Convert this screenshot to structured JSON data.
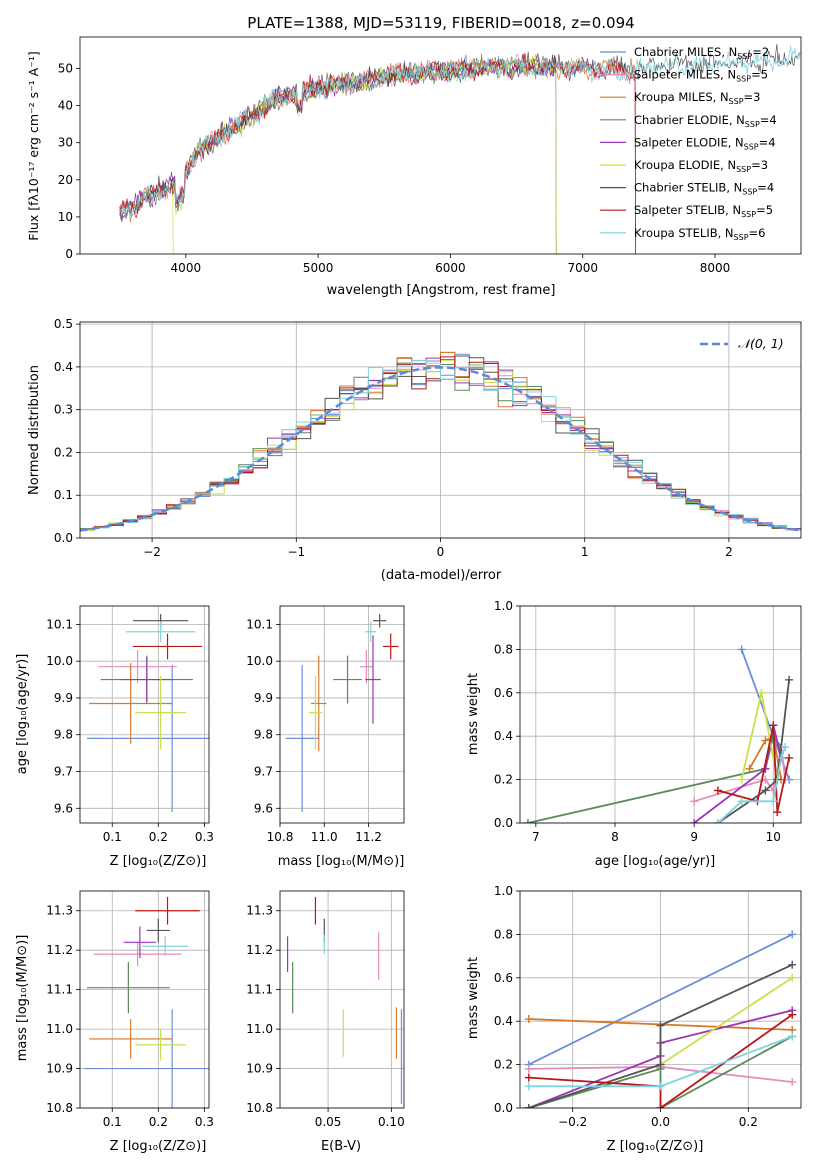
{
  "figure_title": "PLATE=1388, MJD=53119, FIBERID=0018, z=0.094",
  "colors": {
    "Chabrier MILES": "#6a8fd8",
    "Salpeter MILES": "#e58cbb",
    "Kroupa MILES": "#d8782a",
    "Chabrier ELODIE": "#5a8a5a",
    "Salpeter ELODIE": "#9b34b8",
    "Kroupa ELODIE": "#c9e04a",
    "Chabrier STELIB": "#555555",
    "Salpeter STELIB": "#b81818",
    "Kroupa STELIB": "#7fd3de",
    "normal": "#5b8bd6"
  },
  "chart_data": [
    {
      "type": "line",
      "id": "spectrum",
      "title": "PLATE=1388, MJD=53119, FIBERID=0018, z=0.094",
      "xlabel": "wavelength [Angstrom, rest frame]",
      "ylabel": "Flux [fλ10⁻¹⁷ erg cm⁻² s⁻¹ A⁻¹]",
      "xlim": [
        3200,
        8650
      ],
      "ylim": [
        0,
        58.5
      ],
      "xticks": [
        4000,
        5000,
        6000,
        7000,
        8000
      ],
      "yticks": [
        0,
        10,
        20,
        30,
        40,
        50
      ],
      "legend_position": "top-right",
      "legend": [
        {
          "label": "Chabrier MILES, N",
          "sub": "SSP",
          "tail": "=2"
        },
        {
          "label": "Salpeter MILES, N",
          "sub": "SSP",
          "tail": "=5"
        },
        {
          "label": "Kroupa MILES, N",
          "sub": "SSP",
          "tail": "=3"
        },
        {
          "label": "Chabrier ELODIE, N",
          "sub": "SSP",
          "tail": "=4"
        },
        {
          "label": "Salpeter ELODIE, N",
          "sub": "SSP",
          "tail": "=4"
        },
        {
          "label": "Kroupa ELODIE, N",
          "sub": "SSP",
          "tail": "=3"
        },
        {
          "label": "Chabrier STELIB, N",
          "sub": "SSP",
          "tail": "=4"
        },
        {
          "label": "Salpeter STELIB, N",
          "sub": "SSP",
          "tail": "=5"
        },
        {
          "label": "Kroupa STELIB, N",
          "sub": "SSP",
          "tail": "=6"
        }
      ],
      "series": [
        {
          "name": "Chabrier MILES",
          "x": [
            3500,
            7400
          ]
        },
        {
          "name": "Salpeter MILES",
          "x": [
            3500,
            7400
          ]
        },
        {
          "name": "Kroupa MILES",
          "x": [
            3500,
            7400
          ]
        },
        {
          "name": "Chabrier ELODIE",
          "x": [
            3500,
            6800
          ]
        },
        {
          "name": "Salpeter ELODIE",
          "x": [
            3500,
            6800
          ]
        },
        {
          "name": "Kroupa ELODIE",
          "x": [
            3900,
            6800
          ]
        },
        {
          "name": "Chabrier STELIB",
          "x": [
            3500,
            8650
          ]
        },
        {
          "name": "Salpeter STELIB",
          "x": [
            3500,
            7400
          ]
        },
        {
          "name": "Kroupa STELIB",
          "x": [
            3500,
            8650
          ]
        }
      ],
      "continuum": [
        [
          3500,
          11
        ],
        [
          3600,
          13
        ],
        [
          3700,
          15
        ],
        [
          3800,
          17
        ],
        [
          3900,
          19
        ],
        [
          4000,
          22
        ],
        [
          4100,
          28
        ],
        [
          4200,
          30
        ],
        [
          4300,
          33
        ],
        [
          4400,
          35
        ],
        [
          4500,
          37
        ],
        [
          4600,
          40
        ],
        [
          4700,
          42
        ],
        [
          4800,
          43
        ],
        [
          4900,
          44
        ],
        [
          5000,
          45
        ],
        [
          5100,
          45.5
        ],
        [
          5200,
          46
        ],
        [
          5300,
          46.5
        ],
        [
          5400,
          47
        ],
        [
          5500,
          48
        ],
        [
          5600,
          48.5
        ],
        [
          5800,
          49
        ],
        [
          6000,
          49.5
        ],
        [
          6200,
          50
        ],
        [
          6400,
          50.5
        ],
        [
          6600,
          50.5
        ],
        [
          6800,
          50.5
        ],
        [
          7000,
          50
        ],
        [
          7200,
          50
        ],
        [
          7400,
          49.5
        ],
        [
          7600,
          51
        ],
        [
          7800,
          51
        ],
        [
          8000,
          51.5
        ],
        [
          8200,
          51.5
        ],
        [
          8400,
          52
        ],
        [
          8600,
          53
        ]
      ]
    },
    {
      "type": "line",
      "id": "residuals",
      "xlabel": "(data-model)/error",
      "ylabel": "Normed distribution",
      "xlim": [
        -2.5,
        2.5
      ],
      "ylim": [
        0,
        0.505
      ],
      "xticks": [
        -2,
        -1,
        0,
        1,
        2
      ],
      "yticks": [
        0.0,
        0.1,
        0.2,
        0.3,
        0.4,
        0.5
      ],
      "legend": [
        "𝒩(0, 1)"
      ],
      "legend_position": "top-right",
      "bin_width": 0.1
    },
    {
      "type": "scatter",
      "id": "age-vs-Z",
      "xlabel": "Z [log₁₀(Z/Z⊙)]",
      "ylabel": "age  [log₁₀(age/yr)]",
      "xlim": [
        0.03,
        0.31
      ],
      "ylim": [
        9.56,
        10.15
      ],
      "xticks": [
        0.1,
        0.2,
        0.3
      ],
      "yticks": [
        9.6,
        9.7,
        9.8,
        9.9,
        10.0,
        10.1
      ],
      "points": [
        {
          "name": "Chabrier MILES",
          "x": 0.23,
          "xerr": 0.185,
          "y": 9.79,
          "yerr": 0.2
        },
        {
          "name": "Salpeter MILES",
          "x": 0.155,
          "xerr": 0.085,
          "y": 9.985,
          "yerr": 0.045
        },
        {
          "name": "Kroupa MILES",
          "x": 0.14,
          "xerr": 0.09,
          "y": 9.885,
          "yerr": 0.11
        },
        {
          "name": "Chabrier ELODIE",
          "x": 0.175,
          "xerr": 0.1,
          "y": 9.95,
          "yerr": 0.065
        },
        {
          "name": "Salpeter ELODIE",
          "x": 0.175,
          "xerr": 0.055,
          "y": 9.95,
          "yerr": 0.06
        },
        {
          "name": "Kroupa ELODIE",
          "x": 0.205,
          "xerr": 0.055,
          "y": 9.86,
          "yerr": 0.1
        },
        {
          "name": "Chabrier STELIB",
          "x": 0.205,
          "xerr": 0.06,
          "y": 10.11,
          "yerr": 0.018
        },
        {
          "name": "Salpeter STELIB",
          "x": 0.22,
          "xerr": 0.075,
          "y": 10.04,
          "yerr": 0.035
        },
        {
          "name": "Kroupa STELIB",
          "x": 0.205,
          "xerr": 0.075,
          "y": 10.08,
          "yerr": 0.028
        }
      ]
    },
    {
      "type": "scatter",
      "id": "age-vs-mass",
      "xlabel": "mass [log₁₀(M/M⊙)]",
      "xlim": [
        10.8,
        11.36
      ],
      "ylim": [
        9.56,
        10.15
      ],
      "xticks": [
        10.8,
        11.0,
        11.2
      ],
      "yticks": [
        9.6,
        9.7,
        9.8,
        9.9,
        10.0,
        10.1
      ],
      "points": [
        {
          "name": "Chabrier MILES",
          "x": 10.9,
          "xerr": 0.075,
          "y": 9.79,
          "yerr": 0.2
        },
        {
          "name": "Salpeter MILES",
          "x": 11.19,
          "xerr": 0.03,
          "y": 9.985,
          "yerr": 0.045
        },
        {
          "name": "Kroupa MILES",
          "x": 10.975,
          "xerr": 0.035,
          "y": 9.885,
          "yerr": 0.13
        },
        {
          "name": "Chabrier ELODIE",
          "x": 11.105,
          "xerr": 0.065,
          "y": 9.95,
          "yerr": 0.065
        },
        {
          "name": "Salpeter ELODIE",
          "x": 11.22,
          "xerr": 0.035,
          "y": 9.95,
          "yerr": 0.12
        },
        {
          "name": "Kroupa ELODIE",
          "x": 10.96,
          "xerr": 0.03,
          "y": 9.86,
          "yerr": 0.1
        },
        {
          "name": "Chabrier STELIB",
          "x": 11.25,
          "xerr": 0.03,
          "y": 10.11,
          "yerr": 0.018
        },
        {
          "name": "Salpeter STELIB",
          "x": 11.3,
          "xerr": 0.035,
          "y": 10.04,
          "yerr": 0.035
        },
        {
          "name": "Kroupa STELIB",
          "x": 11.21,
          "xerr": 0.025,
          "y": 10.08,
          "yerr": 0.028
        }
      ]
    },
    {
      "type": "line",
      "id": "mass-weight-vs-age",
      "xlabel": "age  [log₁₀(age/yr)]",
      "ylabel": "mass weight",
      "xlim": [
        6.8,
        10.35
      ],
      "ylim": [
        0,
        1.0
      ],
      "xticks": [
        7,
        8,
        9,
        10
      ],
      "yticks": [
        0.0,
        0.2,
        0.4,
        0.6,
        0.8,
        1.0
      ],
      "series": [
        {
          "name": "Chabrier MILES",
          "x": [
            9.6,
            10.2
          ],
          "y": [
            0.8,
            0.2
          ]
        },
        {
          "name": "Salpeter MILES",
          "x": [
            9.0,
            9.9,
            10.0,
            10.1,
            10.15
          ],
          "y": [
            0.1,
            0.2,
            0.15,
            0.35,
            0.2
          ]
        },
        {
          "name": "Kroupa MILES",
          "x": [
            9.7,
            9.9,
            10.0,
            10.1
          ],
          "y": [
            0.25,
            0.38,
            0.4,
            0.2
          ]
        },
        {
          "name": "Chabrier ELODIE",
          "x": [
            6.9,
            9.9,
            10.0,
            10.1
          ],
          "y": [
            0.0,
            0.25,
            0.4,
            0.35
          ]
        },
        {
          "name": "Salpeter ELODIE",
          "x": [
            9.0,
            9.9,
            10.0,
            10.1
          ],
          "y": [
            0.0,
            0.25,
            0.45,
            0.3
          ]
        },
        {
          "name": "Kroupa ELODIE",
          "x": [
            9.6,
            9.85,
            10.05
          ],
          "y": [
            0.2,
            0.6,
            0.2
          ]
        },
        {
          "name": "Chabrier STELIB",
          "x": [
            9.3,
            9.9,
            10.05,
            10.2
          ],
          "y": [
            0.0,
            0.15,
            0.2,
            0.66
          ]
        },
        {
          "name": "Salpeter STELIB",
          "x": [
            9.3,
            9.8,
            10.0,
            10.05,
            10.2
          ],
          "y": [
            0.15,
            0.1,
            0.45,
            0.05,
            0.3
          ]
        },
        {
          "name": "Kroupa STELIB",
          "x": [
            9.3,
            9.6,
            10.0,
            10.1,
            10.15
          ],
          "y": [
            0.0,
            0.1,
            0.1,
            0.3,
            0.35
          ]
        }
      ]
    },
    {
      "type": "scatter",
      "id": "mass-vs-Z",
      "xlabel": "Z [log₁₀(Z/Z⊙)]",
      "ylabel": "mass [log₁₀(M/M⊙)]",
      "xlim": [
        0.03,
        0.31
      ],
      "ylim": [
        10.8,
        11.35
      ],
      "xticks": [
        0.1,
        0.2,
        0.3
      ],
      "yticks": [
        10.8,
        10.9,
        11.0,
        11.1,
        11.2,
        11.3
      ],
      "points": [
        {
          "name": "Chabrier MILES",
          "x": 0.23,
          "xerr": 0.19,
          "y": 10.9,
          "yerr": 0.15
        },
        {
          "name": "Salpeter MILES",
          "x": 0.155,
          "xerr": 0.095,
          "y": 11.19,
          "yerr": 0.03
        },
        {
          "name": "Kroupa MILES",
          "x": 0.14,
          "xerr": 0.09,
          "y": 10.975,
          "yerr": 0.05
        },
        {
          "name": "Chabrier ELODIE",
          "x": 0.135,
          "xerr": 0.09,
          "y": 11.105,
          "yerr": 0.065
        },
        {
          "name": "Salpeter ELODIE",
          "x": 0.16,
          "xerr": 0.035,
          "y": 11.22,
          "yerr": 0.04
        },
        {
          "name": "Kroupa ELODIE",
          "x": 0.205,
          "xerr": 0.055,
          "y": 10.96,
          "yerr": 0.04
        },
        {
          "name": "Chabrier STELIB",
          "x": 0.2,
          "xerr": 0.025,
          "y": 11.25,
          "yerr": 0.03
        },
        {
          "name": "Salpeter STELIB",
          "x": 0.22,
          "xerr": 0.07,
          "y": 11.3,
          "yerr": 0.035
        },
        {
          "name": "Kroupa STELIB",
          "x": 0.215,
          "xerr": 0.05,
          "y": 11.21,
          "yerr": 0.025
        }
      ]
    },
    {
      "type": "scatter",
      "id": "mass-vs-EBV",
      "xlabel": "E(B-V)",
      "xlim": [
        0.012,
        0.11
      ],
      "ylim": [
        10.8,
        11.35
      ],
      "xticks": [
        0.05,
        0.1
      ],
      "yticks": [
        10.8,
        10.9,
        11.0,
        11.1,
        11.2,
        11.3
      ],
      "points": [
        {
          "name": "Chabrier MILES",
          "x": 0.108,
          "y": 10.93,
          "yerr": 0.12
        },
        {
          "name": "Salpeter MILES",
          "x": 0.09,
          "y": 11.185,
          "yerr": 0.06
        },
        {
          "name": "Kroupa MILES",
          "x": 0.104,
          "y": 10.99,
          "yerr": 0.065
        },
        {
          "name": "Chabrier ELODIE",
          "x": 0.022,
          "y": 11.105,
          "yerr": 0.065
        },
        {
          "name": "Salpeter ELODIE",
          "x": 0.018,
          "y": 11.19,
          "yerr": 0.045
        },
        {
          "name": "Kroupa ELODIE",
          "x": 0.062,
          "y": 10.99,
          "yerr": 0.06
        },
        {
          "name": "Chabrier STELIB",
          "x": 0.047,
          "y": 11.25,
          "yerr": 0.03
        },
        {
          "name": "Salpeter STELIB",
          "x": 0.04,
          "y": 11.3,
          "yerr": 0.035
        },
        {
          "name": "Kroupa STELIB",
          "x": 0.047,
          "y": 11.215,
          "yerr": 0.025
        }
      ]
    },
    {
      "type": "line",
      "id": "mass-weight-vs-Z",
      "xlabel": "Z [log₁₀(Z/Z⊙)]",
      "ylabel": "mass weight",
      "xlim": [
        -0.32,
        0.32
      ],
      "ylim": [
        0,
        1.0
      ],
      "xticks": [
        -0.2,
        0.0,
        0.2
      ],
      "yticks": [
        0.0,
        0.2,
        0.4,
        0.6,
        0.8,
        1.0
      ],
      "series": [
        {
          "name": "Chabrier MILES",
          "x": [
            -0.3,
            0.3
          ],
          "y": [
            0.2,
            0.8
          ]
        },
        {
          "name": "Salpeter MILES",
          "x": [
            -0.3,
            0.0,
            0.3
          ],
          "y": [
            0.18,
            0.19,
            0.12
          ]
        },
        {
          "name": "Kroupa MILES",
          "x": [
            -0.3,
            0.3
          ],
          "y": [
            0.41,
            0.36
          ]
        },
        {
          "name": "Chabrier ELODIE",
          "x": [
            -0.3,
            0.0,
            0.0,
            0.3
          ],
          "y": [
            0.0,
            0.18,
            0.0,
            0.33
          ]
        },
        {
          "name": "Salpeter ELODIE",
          "x": [
            -0.3,
            0.0,
            0.0,
            0.3
          ],
          "y": [
            0.0,
            0.24,
            0.3,
            0.45
          ]
        },
        {
          "name": "Kroupa ELODIE",
          "x": [
            0.0,
            0.3
          ],
          "y": [
            0.2,
            0.6
          ]
        },
        {
          "name": "Chabrier STELIB",
          "x": [
            -0.3,
            0.0,
            0.0,
            0.3
          ],
          "y": [
            0.0,
            0.2,
            0.38,
            0.66
          ]
        },
        {
          "name": "Salpeter STELIB",
          "x": [
            -0.3,
            0.0,
            0.0,
            0.3
          ],
          "y": [
            0.14,
            0.1,
            0.0,
            0.43
          ]
        },
        {
          "name": "Kroupa STELIB",
          "x": [
            -0.3,
            0.0,
            0.3
          ],
          "y": [
            0.1,
            0.1,
            0.33
          ]
        }
      ]
    }
  ]
}
